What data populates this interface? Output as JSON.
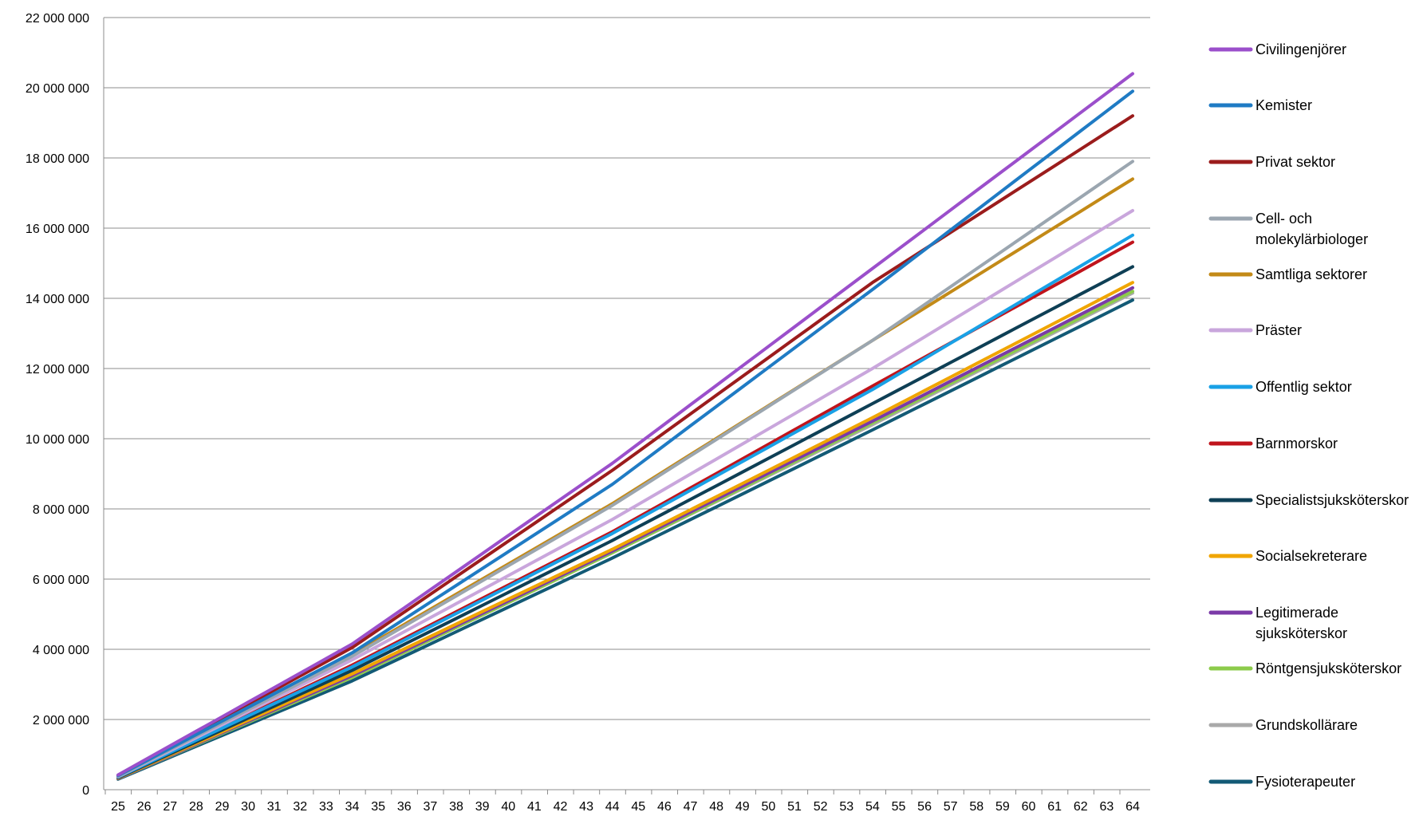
{
  "chart_data": {
    "type": "line",
    "x": [
      25,
      26,
      27,
      28,
      29,
      30,
      31,
      32,
      33,
      34,
      35,
      36,
      37,
      38,
      39,
      40,
      41,
      42,
      43,
      44,
      45,
      46,
      47,
      48,
      49,
      50,
      51,
      52,
      53,
      54,
      55,
      56,
      57,
      58,
      59,
      60,
      61,
      62,
      63,
      64
    ],
    "xticks": [
      "25",
      "26",
      "27",
      "28",
      "29",
      "30",
      "31",
      "32",
      "33",
      "34",
      "35",
      "36",
      "37",
      "38",
      "39",
      "40",
      "41",
      "42",
      "43",
      "44",
      "45",
      "46",
      "47",
      "48",
      "49",
      "50",
      "51",
      "52",
      "53",
      "54",
      "55",
      "56",
      "57",
      "58",
      "59",
      "60",
      "61",
      "62",
      "63",
      "64"
    ],
    "ylim": [
      0,
      22000000
    ],
    "yticks": [
      {
        "value": 0,
        "label": "0"
      },
      {
        "value": 2000000,
        "label": "2 000 000"
      },
      {
        "value": 4000000,
        "label": "4 000 000"
      },
      {
        "value": 6000000,
        "label": "6 000 000"
      },
      {
        "value": 8000000,
        "label": "8 000 000"
      },
      {
        "value": 10000000,
        "label": "10 000 000"
      },
      {
        "value": 12000000,
        "label": "12 000 000"
      },
      {
        "value": 14000000,
        "label": "14 000 000"
      },
      {
        "value": 16000000,
        "label": "16 000 000"
      },
      {
        "value": 18000000,
        "label": "18 000 000"
      },
      {
        "value": 20000000,
        "label": "20 000 000"
      },
      {
        "value": 22000000,
        "label": "22 000 000"
      }
    ],
    "grid": true,
    "legend_position": "right",
    "series": [
      {
        "name": "Civilingenjörer",
        "color": "#9B4FCB",
        "anchors": [
          [
            25,
            420000
          ],
          [
            34,
            4150000
          ],
          [
            44,
            9300000
          ],
          [
            54,
            14850000
          ],
          [
            64,
            20400000
          ]
        ]
      },
      {
        "name": "Kemister",
        "color": "#1F7BC4",
        "anchors": [
          [
            25,
            400000
          ],
          [
            34,
            3900000
          ],
          [
            44,
            8700000
          ],
          [
            54,
            14250000
          ],
          [
            64,
            19900000
          ]
        ]
      },
      {
        "name": "Privat sektor",
        "color": "#9B1C1C",
        "anchors": [
          [
            25,
            410000
          ],
          [
            34,
            4050000
          ],
          [
            44,
            9100000
          ],
          [
            54,
            14450000
          ],
          [
            64,
            19200000
          ]
        ]
      },
      {
        "name": "Cell- och molekylärbiologer",
        "color": "#9BA6B0",
        "anchors": [
          [
            25,
            380000
          ],
          [
            34,
            3800000
          ],
          [
            44,
            8100000
          ],
          [
            54,
            12800000
          ],
          [
            64,
            17900000
          ]
        ]
      },
      {
        "name": "Samtliga sektorer",
        "color": "#C38A17",
        "anchors": [
          [
            25,
            390000
          ],
          [
            34,
            3850000
          ],
          [
            44,
            8150000
          ],
          [
            54,
            12800000
          ],
          [
            64,
            17400000
          ]
        ]
      },
      {
        "name": "Präster",
        "color": "#C9A6DC",
        "anchors": [
          [
            25,
            370000
          ],
          [
            34,
            3700000
          ],
          [
            44,
            7700000
          ],
          [
            54,
            12000000
          ],
          [
            64,
            16500000
          ]
        ]
      },
      {
        "name": "Offentlig sektor",
        "color": "#19A1E6",
        "anchors": [
          [
            25,
            360000
          ],
          [
            34,
            3500000
          ],
          [
            44,
            7300000
          ],
          [
            54,
            11400000
          ],
          [
            64,
            15800000
          ]
        ]
      },
      {
        "name": "Barnmorskor",
        "color": "#C0141C",
        "anchors": [
          [
            25,
            360000
          ],
          [
            34,
            3550000
          ],
          [
            44,
            7350000
          ],
          [
            54,
            11500000
          ],
          [
            64,
            15600000
          ]
        ]
      },
      {
        "name": "Specialistsjuksköterskor",
        "color": "#0E3F55",
        "anchors": [
          [
            25,
            340000
          ],
          [
            34,
            3400000
          ],
          [
            44,
            7100000
          ],
          [
            54,
            11000000
          ],
          [
            64,
            14900000
          ]
        ]
      },
      {
        "name": "Socialsekreterare",
        "color": "#F0A500",
        "anchors": [
          [
            25,
            330000
          ],
          [
            34,
            3300000
          ],
          [
            44,
            6850000
          ],
          [
            54,
            10600000
          ],
          [
            64,
            14450000
          ]
        ]
      },
      {
        "name": "Legitimerade sjuksköterskor",
        "color": "#7B3AA8",
        "anchors": [
          [
            25,
            320000
          ],
          [
            34,
            3250000
          ],
          [
            44,
            6800000
          ],
          [
            54,
            10500000
          ],
          [
            64,
            14300000
          ]
        ]
      },
      {
        "name": "Röntgensjuksköterskor",
        "color": "#8CCB4B",
        "anchors": [
          [
            25,
            320000
          ],
          [
            34,
            3200000
          ],
          [
            44,
            6750000
          ],
          [
            54,
            10450000
          ],
          [
            64,
            14200000
          ]
        ]
      },
      {
        "name": "Grundskollärare",
        "color": "#A9A9A9",
        "anchors": [
          [
            25,
            320000
          ],
          [
            34,
            3200000
          ],
          [
            44,
            6750000
          ],
          [
            54,
            10400000
          ],
          [
            64,
            14150000
          ]
        ]
      },
      {
        "name": "Fysioterapeuter",
        "color": "#135A76",
        "anchors": [
          [
            25,
            300000
          ],
          [
            34,
            3100000
          ],
          [
            44,
            6600000
          ],
          [
            54,
            10250000
          ],
          [
            64,
            13950000
          ]
        ]
      }
    ]
  }
}
